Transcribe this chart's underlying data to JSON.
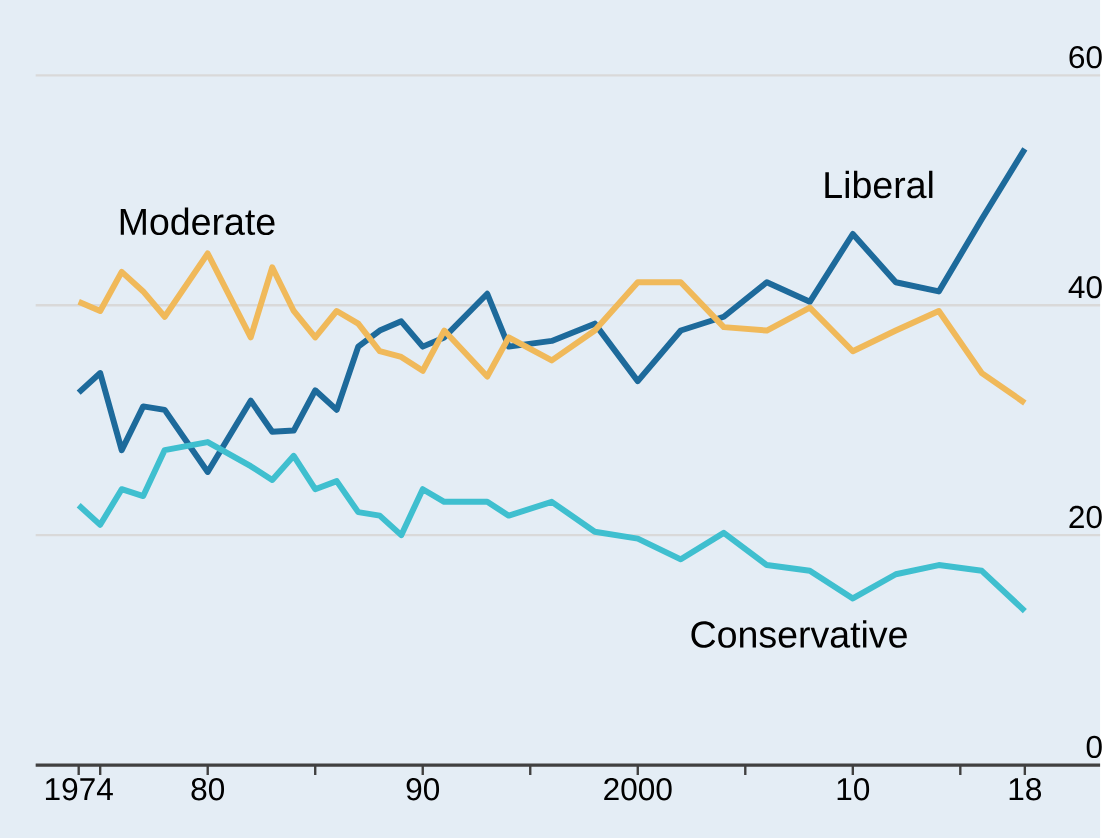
{
  "chart_data": {
    "type": "line",
    "x": [
      1974,
      1975,
      1976,
      1977,
      1978,
      1980,
      1982,
      1983,
      1984,
      1985,
      1986,
      1987,
      1988,
      1989,
      1990,
      1991,
      1993,
      1994,
      1996,
      1998,
      2000,
      2002,
      2004,
      2006,
      2008,
      2010,
      2012,
      2014,
      2016,
      2018
    ],
    "series": [
      {
        "name": "Liberal",
        "color": "#1d6a9b",
        "values": [
          32.4,
          34.1,
          27.4,
          31.2,
          30.9,
          25.5,
          31.7,
          29,
          29.1,
          32.6,
          30.9,
          36.4,
          37.8,
          38.6,
          36.4,
          37.2,
          41,
          36.4,
          36.9,
          38.4,
          33.4,
          37.8,
          39,
          42,
          40.3,
          46.2,
          42,
          41.2,
          47.5,
          53.6
        ]
      },
      {
        "name": "Moderate",
        "color": "#f0b95a",
        "values": [
          40.3,
          39.5,
          42.9,
          41.2,
          39,
          44.5,
          37.2,
          43.3,
          39.5,
          37.2,
          39.5,
          38.4,
          36,
          35.5,
          34.3,
          37.8,
          33.8,
          37.2,
          35.2,
          37.8,
          42,
          42,
          38.1,
          37.8,
          39.8,
          36,
          37.8,
          39.5,
          34.1,
          31.5
        ]
      },
      {
        "name": "Conservative",
        "color": "#3fbfcf",
        "values": [
          22.6,
          20.9,
          24,
          23.4,
          27.4,
          28.1,
          26,
          24.8,
          26.9,
          24,
          24.7,
          22,
          21.7,
          20,
          24,
          22.9,
          22.9,
          21.7,
          22.9,
          20.3,
          19.7,
          17.9,
          20.2,
          17.4,
          16.9,
          14.5,
          16.6,
          17.4,
          16.9,
          13.4
        ]
      }
    ],
    "xlim": [
      1972,
      2021.5
    ],
    "xticks": [
      1974,
      {
        "value": 1975,
        "label": null
      },
      {
        "value": 1980,
        "label": "80"
      },
      {
        "value": 1985,
        "label": null
      },
      {
        "value": 1990,
        "label": "90"
      },
      {
        "value": 1995,
        "label": null
      },
      2000,
      {
        "value": 2005,
        "label": null
      },
      {
        "value": 2010,
        "label": "10"
      },
      {
        "value": 2015,
        "label": null
      },
      {
        "value": 2018,
        "label": "18"
      }
    ],
    "ylim": [
      0,
      60
    ],
    "yticks": [
      0,
      20,
      40,
      60
    ],
    "grid": "y",
    "legend": false,
    "marker": "none",
    "line_style": "solid"
  }
}
